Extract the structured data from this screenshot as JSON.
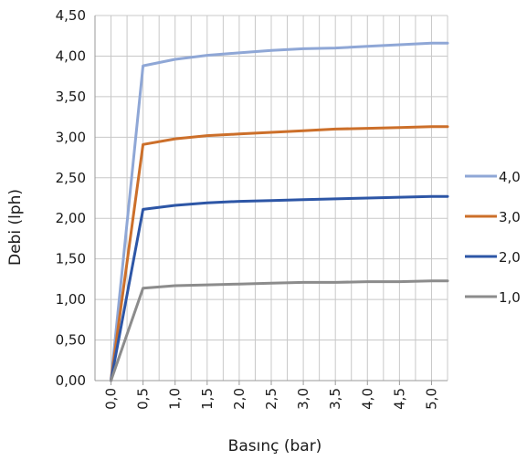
{
  "chart_data": {
    "type": "line",
    "xlabel": "Basınç (bar)",
    "ylabel": "Debi (lph)",
    "x": [
      0.0,
      0.5,
      1.0,
      1.5,
      2.0,
      2.5,
      3.0,
      3.5,
      4.0,
      4.5,
      5.0
    ],
    "x_tick_labels": [
      "0,0",
      "0,5",
      "1,0",
      "1,5",
      "2,0",
      "2,5",
      "3,0",
      "3,5",
      "4,0",
      "4,5",
      "5,0"
    ],
    "xlim": [
      -0.25,
      5.25
    ],
    "ylim": [
      0,
      4.5
    ],
    "y_ticks": [
      0,
      0.5,
      1.0,
      1.5,
      2.0,
      2.5,
      3.0,
      3.5,
      4.0,
      4.5
    ],
    "y_tick_labels": [
      "0,00",
      "0,50",
      "1,00",
      "1,50",
      "2,00",
      "2,50",
      "3,00",
      "3,50",
      "4,00",
      "4,50"
    ],
    "grid": true,
    "legend_position": "right",
    "series": [
      {
        "name": "4,0",
        "color": "#8fa7d6",
        "points": [
          [
            0.0,
            0.0
          ],
          [
            0.5,
            3.88
          ],
          [
            1.0,
            3.96
          ],
          [
            1.5,
            4.01
          ],
          [
            2.0,
            4.04
          ],
          [
            2.5,
            4.07
          ],
          [
            3.0,
            4.09
          ],
          [
            3.5,
            4.1
          ],
          [
            4.0,
            4.12
          ],
          [
            4.5,
            4.14
          ],
          [
            5.0,
            4.16
          ],
          [
            5.25,
            4.16
          ]
        ]
      },
      {
        "name": "3,0",
        "color": "#cc6f2a",
        "points": [
          [
            0.0,
            0.0
          ],
          [
            0.5,
            2.91
          ],
          [
            1.0,
            2.98
          ],
          [
            1.5,
            3.02
          ],
          [
            2.0,
            3.04
          ],
          [
            2.5,
            3.06
          ],
          [
            3.0,
            3.08
          ],
          [
            3.5,
            3.1
          ],
          [
            4.0,
            3.11
          ],
          [
            4.5,
            3.12
          ],
          [
            5.0,
            3.13
          ],
          [
            5.25,
            3.13
          ]
        ]
      },
      {
        "name": "2,0",
        "color": "#2d56a6",
        "points": [
          [
            0.0,
            0.0
          ],
          [
            0.5,
            2.11
          ],
          [
            1.0,
            2.16
          ],
          [
            1.5,
            2.19
          ],
          [
            2.0,
            2.21
          ],
          [
            2.5,
            2.22
          ],
          [
            3.0,
            2.23
          ],
          [
            3.5,
            2.24
          ],
          [
            4.0,
            2.25
          ],
          [
            4.5,
            2.26
          ],
          [
            5.0,
            2.27
          ],
          [
            5.25,
            2.27
          ]
        ]
      },
      {
        "name": "1,0",
        "color": "#8c8c8c",
        "points": [
          [
            0.0,
            0.0
          ],
          [
            0.5,
            1.14
          ],
          [
            1.0,
            1.17
          ],
          [
            1.5,
            1.18
          ],
          [
            2.0,
            1.19
          ],
          [
            2.5,
            1.2
          ],
          [
            3.0,
            1.21
          ],
          [
            3.5,
            1.21
          ],
          [
            4.0,
            1.22
          ],
          [
            4.5,
            1.22
          ],
          [
            5.0,
            1.23
          ],
          [
            5.25,
            1.23
          ]
        ]
      }
    ]
  }
}
